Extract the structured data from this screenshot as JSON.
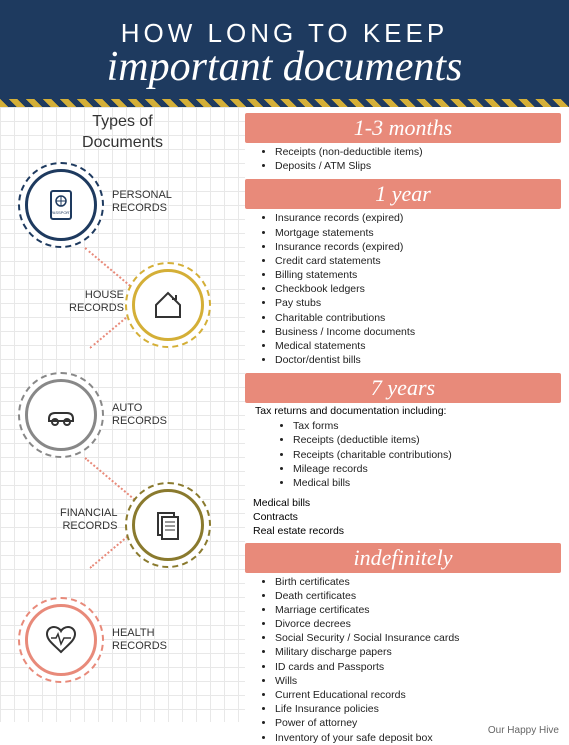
{
  "header": {
    "line1": "HOW LONG TO KEEP",
    "line2": "important documents",
    "bg_color": "#1e3a5f",
    "stripe_colors": [
      "#d4af37",
      "#1e3a5f"
    ]
  },
  "left": {
    "heading_line1": "Types of",
    "heading_line2": "Documents",
    "categories": [
      {
        "label_line1": "PERSONAL",
        "label_line2": "RECORDS",
        "color": "#1e3a5f",
        "icon": "passport"
      },
      {
        "label_line1": "HOUSE",
        "label_line2": "RECORDS",
        "color": "#d4af37",
        "icon": "house"
      },
      {
        "label_line1": "AUTO",
        "label_line2": "RECORDS",
        "color": "#888888",
        "icon": "car"
      },
      {
        "label_line1": "FINANCIAL",
        "label_line2": "RECORDS",
        "color": "#8a7a2e",
        "icon": "papers"
      },
      {
        "label_line1": "HEALTH",
        "label_line2": "RECORDS",
        "color": "#e88a7a",
        "icon": "heart"
      }
    ]
  },
  "sections": [
    {
      "title": "1-3 months",
      "items": [
        "Receipts (non-deductible items)",
        "Deposits / ATM Slips"
      ]
    },
    {
      "title": "1 year",
      "items": [
        "Insurance records (expired)",
        "Mortgage statements",
        "Insurance records (expired)",
        "Credit card statements",
        "Billing statements",
        "Checkbook ledgers",
        "Pay stubs",
        "Charitable contributions",
        "Business / Income documents",
        "Medical statements",
        "Doctor/dentist bills"
      ]
    },
    {
      "title": "7 years",
      "intro": "Tax returns and documentation including:",
      "items": [
        "Tax forms",
        "Receipts (deductible items)",
        "Receipts (charitable contributions)",
        "Mileage records",
        "Medical bills"
      ],
      "after": [
        "Medical bills",
        "Contracts",
        "Real estate records"
      ]
    },
    {
      "title": "indefinitely",
      "items": [
        "Birth certificates",
        "Death certificates",
        "Marriage certificates",
        "Divorce decrees",
        "Social Security / Social Insurance cards",
        "Military discharge papers",
        "ID cards and Passports",
        "Wills",
        "Current Educational records",
        "Life Insurance policies",
        "Power of attorney",
        "Inventory of your safe deposit box"
      ]
    }
  ],
  "section_header_bg": "#e88a7a",
  "footer": "Our Happy Hive",
  "connector_color": "#e88a7a"
}
